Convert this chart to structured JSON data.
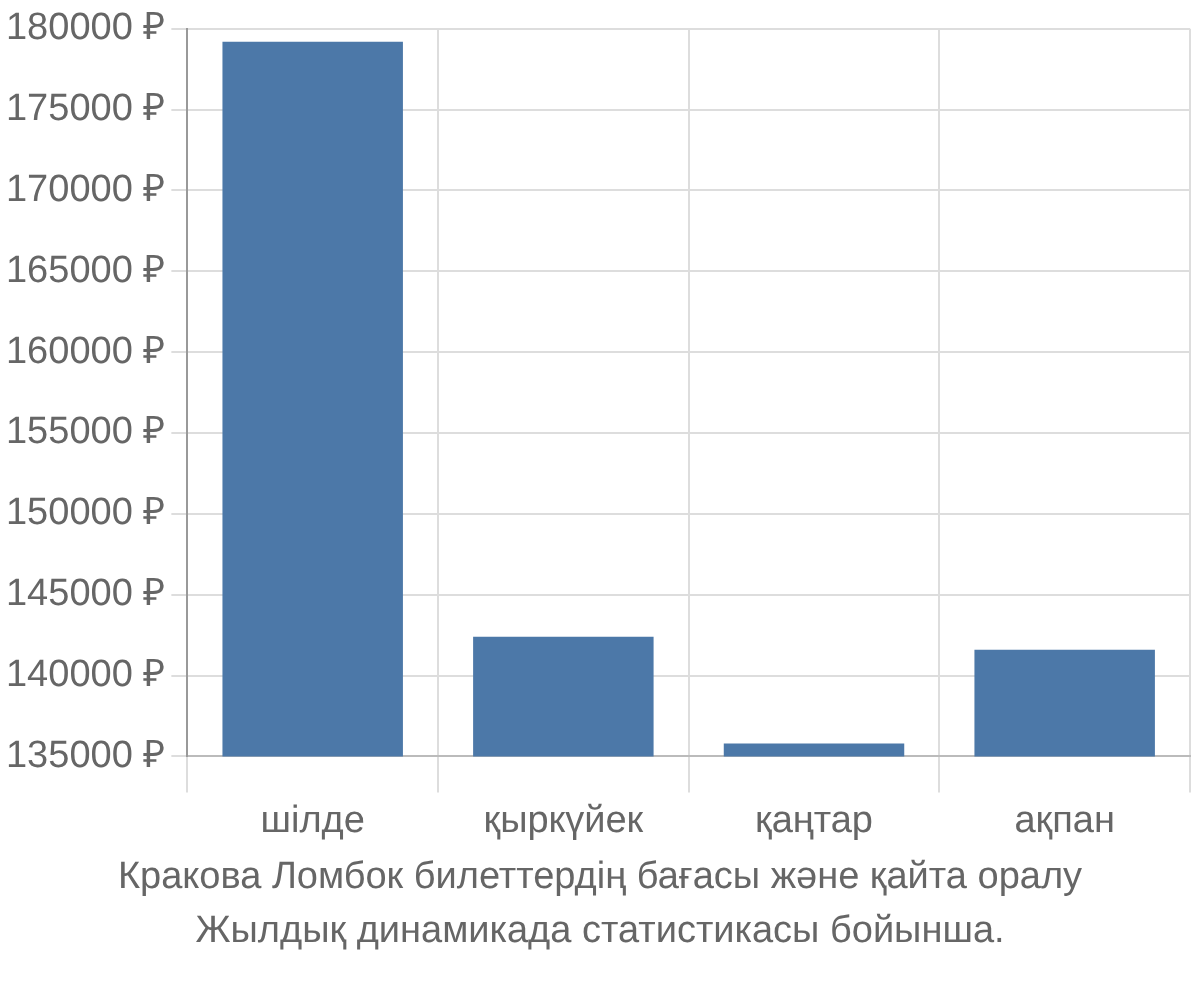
{
  "chart_data": {
    "type": "bar",
    "categories": [
      "шілде",
      "қыркүйек",
      "қаңтар",
      "ақпан"
    ],
    "values": [
      179200,
      142400,
      135800,
      141600
    ],
    "color": "#4c78a8",
    "ylim": [
      135000,
      180000
    ],
    "yticks": [
      {
        "value": 135000,
        "label": "135000 ₽"
      },
      {
        "value": 140000,
        "label": "140000 ₽"
      },
      {
        "value": 145000,
        "label": "145000 ₽"
      },
      {
        "value": 150000,
        "label": "150000 ₽"
      },
      {
        "value": 155000,
        "label": "155000 ₽"
      },
      {
        "value": 160000,
        "label": "160000 ₽"
      },
      {
        "value": 165000,
        "label": "165000 ₽"
      },
      {
        "value": 170000,
        "label": "170000 ₽"
      },
      {
        "value": 175000,
        "label": "175000 ₽"
      },
      {
        "value": 180000,
        "label": "180000 ₽"
      }
    ],
    "grid": true,
    "annotations": [
      "Кракова Ломбок билеттердің бағасы және қайта оралу",
      "Жылдық динамикада статистикасы бойынша."
    ]
  }
}
